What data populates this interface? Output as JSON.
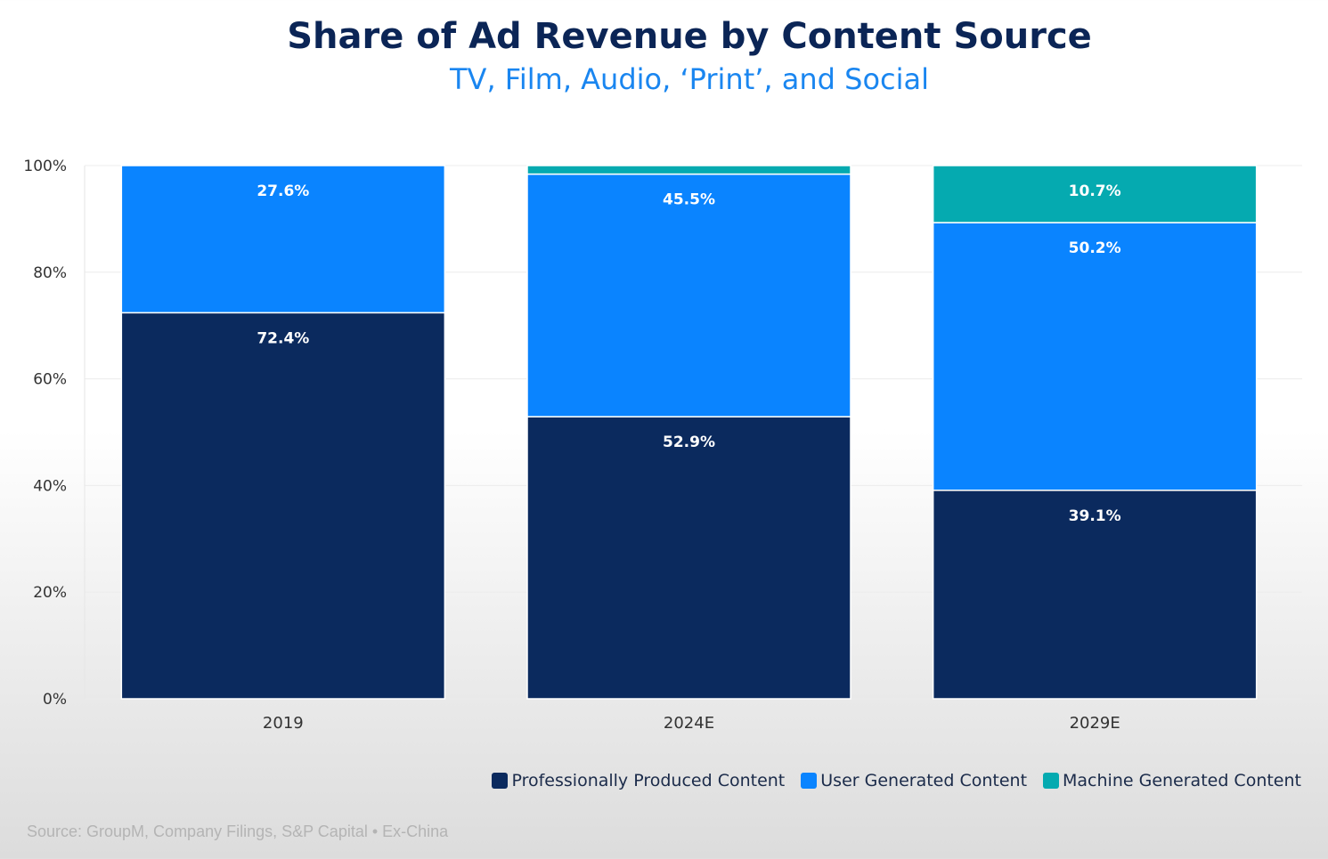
{
  "chart_data": {
    "type": "bar",
    "stacked": true,
    "title": "Share of Ad Revenue by Content Source",
    "subtitle": "TV, Film, Audio, ‘Print’, and Social",
    "categories": [
      "2019",
      "2024E",
      "2029E"
    ],
    "series": [
      {
        "name": "Professionally Produced Content",
        "color": "#0b2a5e",
        "values": [
          72.4,
          52.9,
          39.1
        ],
        "labels": [
          "72.4%",
          "52.9%",
          "39.1%"
        ]
      },
      {
        "name": "User Generated Content",
        "color": "#0a84ff",
        "values": [
          27.6,
          45.5,
          50.2
        ],
        "labels": [
          "27.6%",
          "45.5%",
          "50.2%"
        ]
      },
      {
        "name": "Machine Generated Content",
        "color": "#05aab0",
        "values": [
          0,
          1.6,
          10.7
        ],
        "labels": [
          "",
          "",
          "10.7%"
        ]
      }
    ],
    "ylim": [
      0,
      100
    ],
    "yticks": [
      "0%",
      "20%",
      "40%",
      "60%",
      "80%",
      "100%"
    ],
    "ytick_values": [
      0,
      20,
      40,
      60,
      80,
      100
    ],
    "grid": true,
    "legend_position": "bottom-right",
    "source": "Source: GroupM, Company Filings, S&P Capital • Ex-China"
  }
}
